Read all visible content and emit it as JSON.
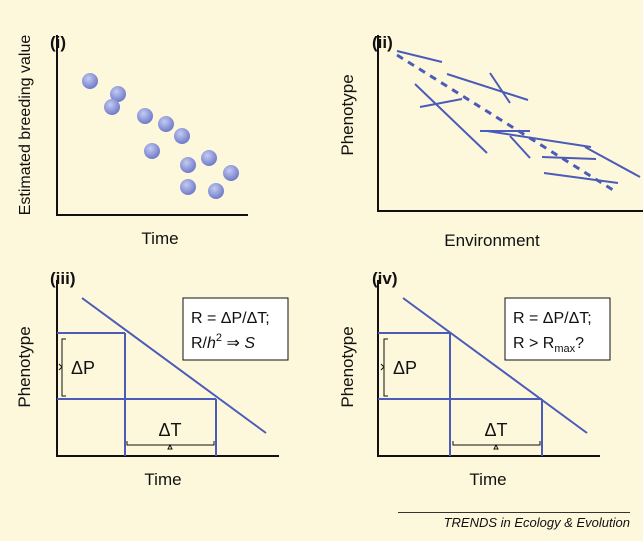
{
  "panels": {
    "i": {
      "label": "(i)",
      "ylabel": "Estimated breeding value",
      "xlabel": "Time"
    },
    "ii": {
      "label": "(ii)",
      "ylabel": "Phenotype",
      "xlabel": "Environment"
    },
    "iii": {
      "label": "(iii)",
      "ylabel": "Phenotype",
      "xlabel": "Time",
      "delta_p": "ΔP",
      "delta_t": "ΔT",
      "box_line1": "R = ΔP/ΔT;",
      "box_line2_a": "R/",
      "box_line2_h": "h",
      "box_line2_sup": "2",
      "box_line2_arrow": " ⇒ ",
      "box_line2_s": "S"
    },
    "iv": {
      "label": "(iv)",
      "ylabel": "Phenotype",
      "xlabel": "Time",
      "delta_p": "ΔP",
      "delta_t": "ΔT",
      "box_line1": "R = ΔP/ΔT;",
      "box_line2_a": "R > R",
      "box_line2_sub": "max",
      "box_line2_b": "?"
    }
  },
  "footer": "TRENDS in Ecology & Evolution",
  "colors": {
    "line": "#4a5bb8",
    "dot": "#8a94d8",
    "background": "#fdf8dc"
  }
}
